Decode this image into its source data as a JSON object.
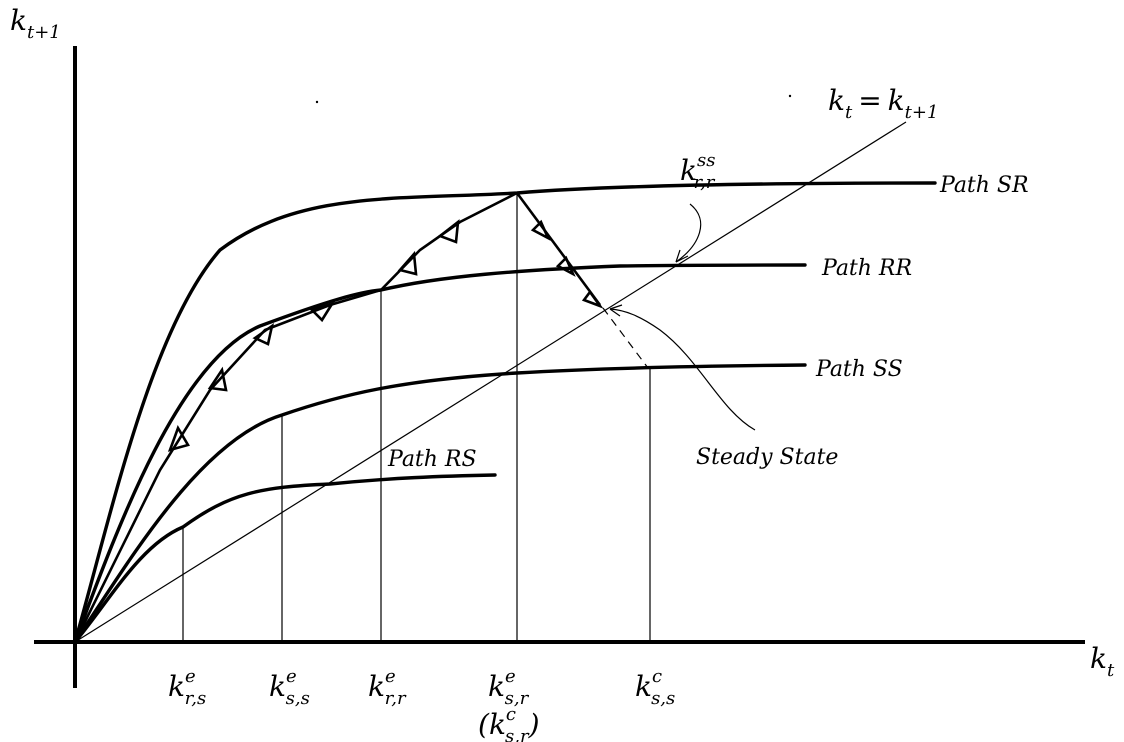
{
  "axes": {
    "y_var": "k",
    "y_sub": "t+1",
    "x_var": "k",
    "x_sub": "t"
  },
  "diagonal_label": {
    "lhs_var": "k",
    "lhs_sub": "t",
    "eq": "=",
    "rhs_var": "k",
    "rhs_sub": "t+1"
  },
  "paths": {
    "sr": "Path SR",
    "rr": "Path RR",
    "ss": "Path SS",
    "rs": "Path RS"
  },
  "annotations": {
    "steady_state": "Steady State",
    "kss_var": "k",
    "kss_sup": "ss",
    "kss_sub": "r,r"
  },
  "ticks": [
    {
      "var": "k",
      "sup": "e",
      "sub": "r,s"
    },
    {
      "var": "k",
      "sup": "e",
      "sub": "s,s"
    },
    {
      "var": "k",
      "sup": "e",
      "sub": "r,r"
    },
    {
      "var": "k",
      "sup": "e",
      "sub": "s,r"
    },
    {
      "var": "k",
      "sup": "c",
      "sub": "s,s"
    }
  ],
  "tick_extra": {
    "open": "(",
    "var": "k",
    "sup": "c",
    "sub": "s,r",
    "close": ")"
  }
}
